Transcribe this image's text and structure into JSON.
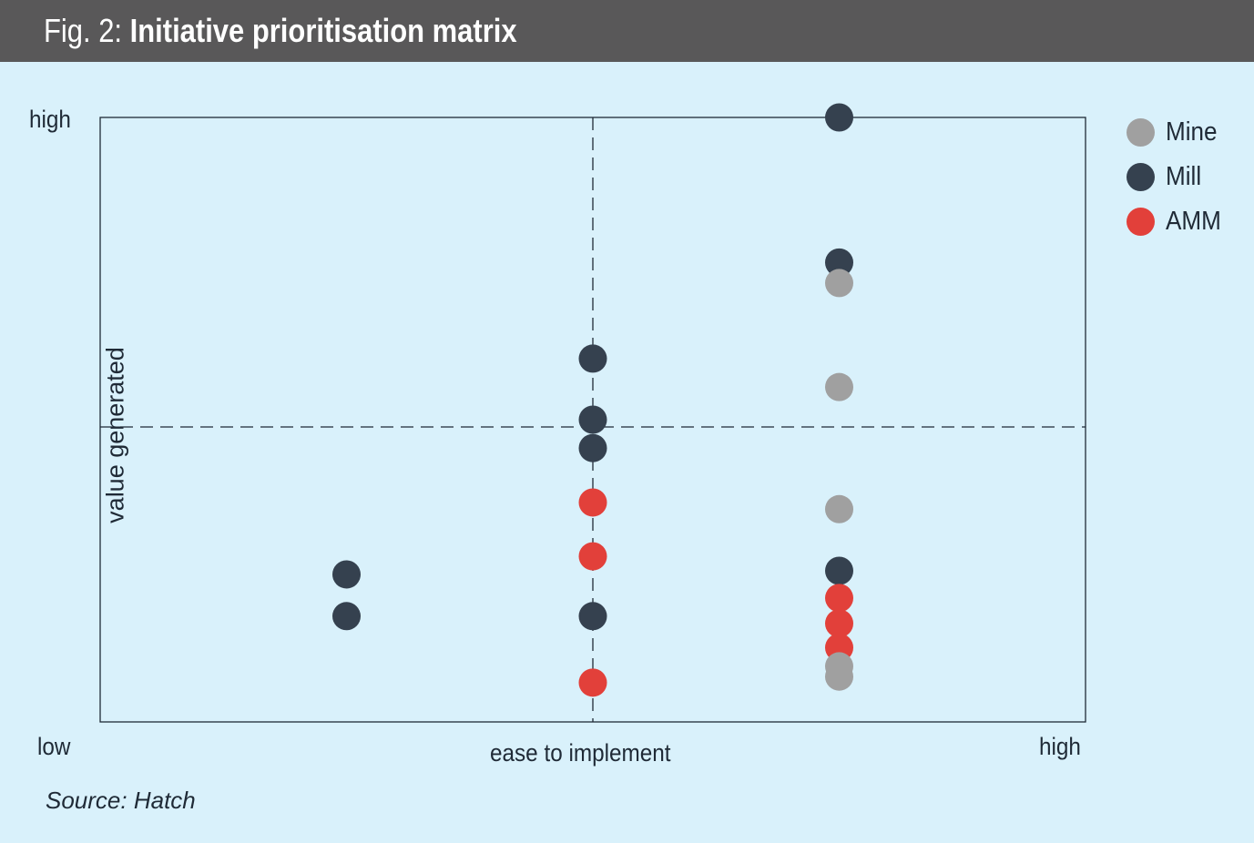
{
  "header": {
    "title_prefix": "Fig. 2:",
    "title_main": "Initiative prioritisation matrix"
  },
  "source": "Source: Hatch",
  "colors": {
    "Mine": "#a0a0a0",
    "Mill": "#35414f",
    "AMM": "#e2403a",
    "header_bg": "#595859",
    "page_bg": "#d9f1fb"
  },
  "chart_data": {
    "type": "scatter",
    "title": "Initiative prioritisation matrix",
    "xlabel": "ease to implement",
    "ylabel": "value generated",
    "x_tick_labels": {
      "low": "low",
      "high": "high"
    },
    "y_tick_labels": {
      "high": "high"
    },
    "xlim": [
      0,
      10
    ],
    "ylim": [
      0,
      10
    ],
    "quadrant_dividers": {
      "x": 5.0,
      "y": 4.88
    },
    "grid": false,
    "legend_position": "right",
    "legend": [
      "Mine",
      "Mill",
      "AMM"
    ],
    "series": [
      {
        "name": "Mine",
        "points": [
          {
            "x": 7.5,
            "y": 7.26
          },
          {
            "x": 7.5,
            "y": 5.54
          },
          {
            "x": 7.5,
            "y": 3.52
          },
          {
            "x": 7.5,
            "y": 0.92
          },
          {
            "x": 7.5,
            "y": 0.75
          }
        ]
      },
      {
        "name": "Mill",
        "points": [
          {
            "x": 7.5,
            "y": 10.0
          },
          {
            "x": 7.5,
            "y": 7.6
          },
          {
            "x": 7.5,
            "y": 2.5
          },
          {
            "x": 5.0,
            "y": 6.01
          },
          {
            "x": 5.0,
            "y": 5.0
          },
          {
            "x": 5.0,
            "y": 4.53
          },
          {
            "x": 5.0,
            "y": 1.75
          },
          {
            "x": 2.5,
            "y": 2.44
          },
          {
            "x": 2.5,
            "y": 1.75
          }
        ]
      },
      {
        "name": "AMM",
        "points": [
          {
            "x": 7.5,
            "y": 2.05
          },
          {
            "x": 7.5,
            "y": 1.63
          },
          {
            "x": 7.5,
            "y": 1.23
          },
          {
            "x": 5.0,
            "y": 3.63
          },
          {
            "x": 5.0,
            "y": 2.74
          },
          {
            "x": 5.0,
            "y": 0.65
          }
        ]
      }
    ]
  }
}
